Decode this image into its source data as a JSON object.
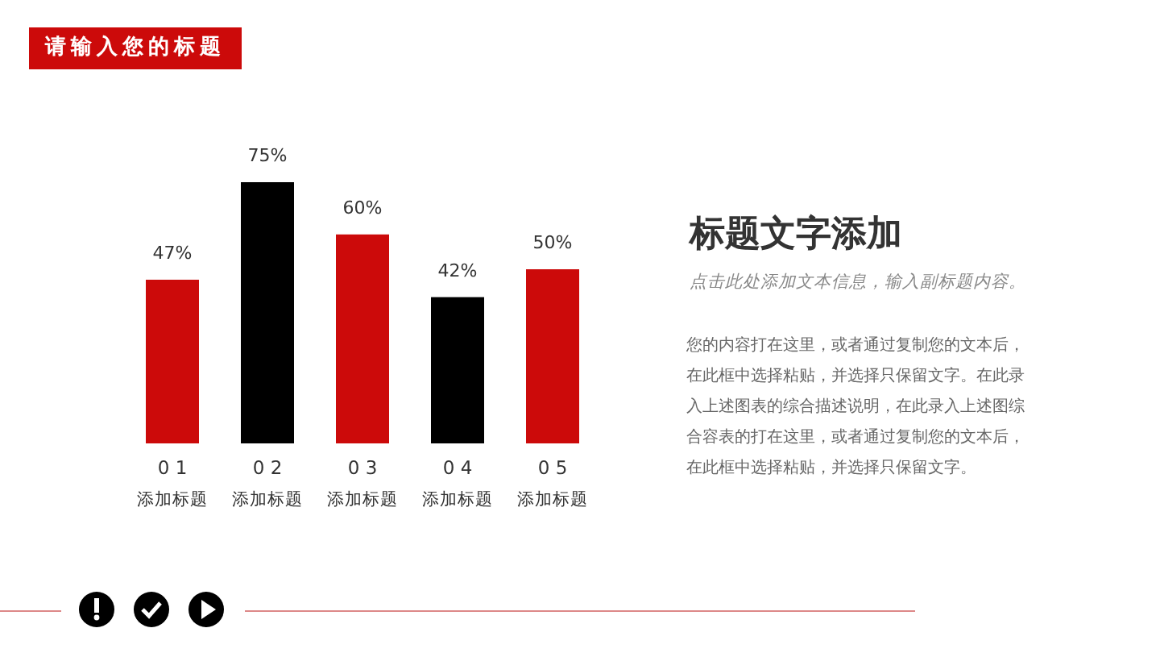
{
  "chart_data": {
    "type": "bar",
    "title": "请输入您的标题",
    "categories": [
      "0 1\n添加标题",
      "0 2\n添加标题",
      "0 3\n添加标题",
      "0 4\n添加标题",
      "0 5\n添加标题"
    ],
    "values": [
      47,
      75,
      60,
      42,
      50
    ],
    "colors": [
      "#cc0a0a",
      "#000000",
      "#cc0a0a",
      "#000000",
      "#cc0a0a"
    ],
    "value_labels": [
      "47%",
      "75%",
      "60%",
      "42%",
      "50%"
    ],
    "annotations": [
      "标题文字添加",
      "点击此处添加文本信息，输入副标题内容。",
      "您的内容打在这里，或者通过复制您的文本后，在此框中选择粘贴，并选择只保留文字。在此录入上述图表的综合描述说明，在此录入上述图综合容表的打在这里，或者通过复制您的文本后，在此框中选择粘贴，并选择只保留文字。"
    ]
  }
}
